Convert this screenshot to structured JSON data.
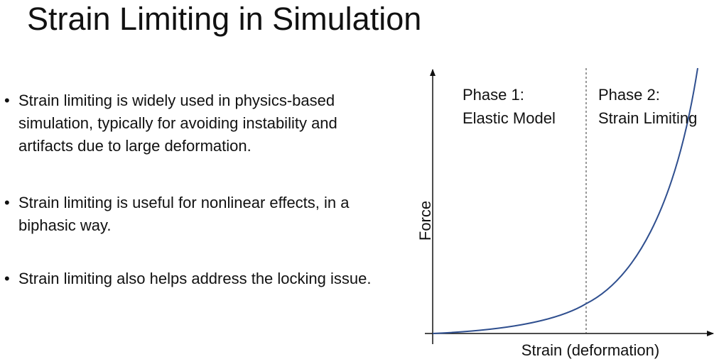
{
  "slide": {
    "title": "Strain Limiting in Simulation"
  },
  "bullets": [
    "Strain limiting is widely used in physics-based simulation, typically for avoiding instability and artifacts due to large deformation.",
    "Strain limiting is useful for nonlinear effects, in a biphasic way.",
    "Strain limiting also helps address the locking issue."
  ],
  "diagram": {
    "y_axis_label": "Force",
    "x_axis_label": "Strain (deformation)",
    "phase1": {
      "title": "Phase 1:",
      "subtitle": "Elastic Model"
    },
    "phase2": {
      "title": "Phase 2:",
      "subtitle": "Strain Limiting"
    },
    "curve_color": "#2f4f8f",
    "divider_style": "dashed"
  }
}
